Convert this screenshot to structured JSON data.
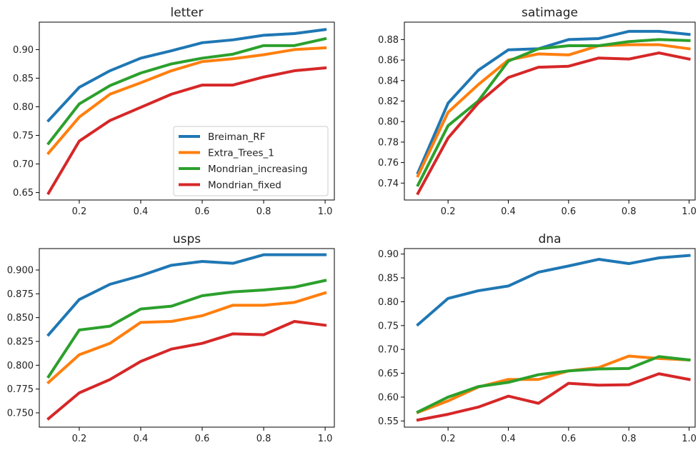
{
  "colors": {
    "Breiman_RF": "#1f77b4",
    "Extra_Trees_1": "#ff7f0e",
    "Mondrian_increasing": "#2ca02c",
    "Mondrian_fixed": "#d62728",
    "axis": "#000000",
    "background": "#ffffff"
  },
  "chart_data": [
    {
      "type": "line",
      "title": "letter",
      "xlabel": "",
      "ylabel": "",
      "x": [
        0.1,
        0.2,
        0.3,
        0.4,
        0.5,
        0.6,
        0.7,
        0.8,
        0.9,
        1.0
      ],
      "xlim": [
        0.07,
        1.03
      ],
      "ylim": [
        0.637,
        0.948
      ],
      "xticks": [
        0.2,
        0.4,
        0.6,
        0.8,
        1.0
      ],
      "xtick_labels": [
        "0.2",
        "0.4",
        "0.6",
        "0.8",
        "1.0"
      ],
      "yticks": [
        0.65,
        0.7,
        0.75,
        0.8,
        0.85,
        0.9
      ],
      "ytick_labels": [
        "0.65",
        "0.70",
        "0.75",
        "0.80",
        "0.85",
        "0.90"
      ],
      "legend": {
        "show": true,
        "placement": "lower-right"
      },
      "series": [
        {
          "name": "Breiman_RF",
          "values": [
            0.776,
            0.834,
            0.863,
            0.885,
            0.898,
            0.912,
            0.917,
            0.925,
            0.928,
            0.935
          ]
        },
        {
          "name": "Extra_Trees_1",
          "values": [
            0.719,
            0.782,
            0.822,
            0.842,
            0.863,
            0.879,
            0.884,
            0.891,
            0.9,
            0.903
          ]
        },
        {
          "name": "Mondrian_increasing",
          "values": [
            0.736,
            0.805,
            0.837,
            0.859,
            0.875,
            0.885,
            0.892,
            0.907,
            0.907,
            0.919
          ]
        },
        {
          "name": "Mondrian_fixed",
          "values": [
            0.649,
            0.74,
            0.776,
            0.799,
            0.822,
            0.838,
            0.838,
            0.852,
            0.863,
            0.868
          ]
        }
      ]
    },
    {
      "type": "line",
      "title": "satimage",
      "xlabel": "",
      "ylabel": "",
      "x": [
        0.1,
        0.2,
        0.3,
        0.4,
        0.5,
        0.6,
        0.7,
        0.8,
        0.9,
        1.0
      ],
      "xlim": [
        0.055,
        1.02
      ],
      "ylim": [
        0.7235,
        0.897
      ],
      "xticks": [
        0.2,
        0.4,
        0.6,
        0.8,
        1.0
      ],
      "xtick_labels": [
        "0.2",
        "0.4",
        "0.6",
        "0.8",
        "1.0"
      ],
      "yticks": [
        0.74,
        0.76,
        0.78,
        0.8,
        0.82,
        0.84,
        0.86,
        0.88
      ],
      "ytick_labels": [
        "0.74",
        "0.76",
        "0.78",
        "0.80",
        "0.82",
        "0.84",
        "0.86",
        "0.88"
      ],
      "legend": {
        "show": false
      },
      "series": [
        {
          "name": "Breiman_RF",
          "values": [
            0.75,
            0.818,
            0.85,
            0.87,
            0.871,
            0.88,
            0.881,
            0.888,
            0.888,
            0.885
          ]
        },
        {
          "name": "Extra_Trees_1",
          "values": [
            0.747,
            0.809,
            0.836,
            0.86,
            0.866,
            0.865,
            0.874,
            0.875,
            0.875,
            0.871
          ]
        },
        {
          "name": "Mondrian_increasing",
          "values": [
            0.738,
            0.796,
            0.82,
            0.859,
            0.871,
            0.874,
            0.874,
            0.878,
            0.88,
            0.879
          ]
        },
        {
          "name": "Mondrian_fixed",
          "values": [
            0.73,
            0.784,
            0.818,
            0.843,
            0.853,
            0.854,
            0.862,
            0.861,
            0.867,
            0.861
          ]
        }
      ]
    },
    {
      "type": "line",
      "title": "usps",
      "xlabel": "",
      "ylabel": "",
      "x": [
        0.1,
        0.2,
        0.3,
        0.4,
        0.5,
        0.6,
        0.7,
        0.8,
        0.9,
        1.0
      ],
      "xlim": [
        0.07,
        1.03
      ],
      "ylim": [
        0.735,
        0.9225
      ],
      "xticks": [
        0.2,
        0.4,
        0.6,
        0.8,
        1.0
      ],
      "xtick_labels": [
        "0.2",
        "0.4",
        "0.6",
        "0.8",
        "1.0"
      ],
      "yticks": [
        0.75,
        0.775,
        0.8,
        0.825,
        0.85,
        0.875,
        0.9
      ],
      "ytick_labels": [
        "0.750",
        "0.775",
        "0.800",
        "0.825",
        "0.850",
        "0.875",
        "0.900"
      ],
      "legend": {
        "show": false
      },
      "series": [
        {
          "name": "Breiman_RF",
          "values": [
            0.832,
            0.869,
            0.885,
            0.894,
            0.905,
            0.909,
            0.907,
            0.916,
            0.916,
            0.916
          ]
        },
        {
          "name": "Extra_Trees_1",
          "values": [
            0.782,
            0.811,
            0.823,
            0.845,
            0.846,
            0.852,
            0.863,
            0.863,
            0.866,
            0.876
          ]
        },
        {
          "name": "Mondrian_increasing",
          "values": [
            0.788,
            0.837,
            0.841,
            0.859,
            0.862,
            0.873,
            0.877,
            0.879,
            0.882,
            0.889
          ]
        },
        {
          "name": "Mondrian_fixed",
          "values": [
            0.744,
            0.771,
            0.785,
            0.804,
            0.817,
            0.823,
            0.833,
            0.832,
            0.846,
            0.842
          ]
        }
      ]
    },
    {
      "type": "line",
      "title": "dna",
      "xlabel": "",
      "ylabel": "",
      "x": [
        0.1,
        0.2,
        0.3,
        0.4,
        0.5,
        0.6,
        0.7,
        0.8,
        0.9,
        1.0
      ],
      "xlim": [
        0.055,
        1.02
      ],
      "ylim": [
        0.537,
        0.9115
      ],
      "xticks": [
        0.2,
        0.4,
        0.6,
        0.8,
        1.0
      ],
      "xtick_labels": [
        "0.2",
        "0.4",
        "0.6",
        "0.8",
        "1.0"
      ],
      "yticks": [
        0.55,
        0.6,
        0.65,
        0.7,
        0.75,
        0.8,
        0.85,
        0.9
      ],
      "ytick_labels": [
        "0.55",
        "0.60",
        "0.65",
        "0.70",
        "0.75",
        "0.80",
        "0.85",
        "0.90"
      ],
      "legend": {
        "show": false
      },
      "series": [
        {
          "name": "Breiman_RF",
          "values": [
            0.752,
            0.807,
            0.823,
            0.833,
            0.862,
            0.875,
            0.889,
            0.88,
            0.892,
            0.897
          ]
        },
        {
          "name": "Extra_Trees_1",
          "values": [
            0.568,
            0.592,
            0.621,
            0.637,
            0.637,
            0.655,
            0.662,
            0.686,
            0.681,
            0.678
          ]
        },
        {
          "name": "Mondrian_increasing",
          "values": [
            0.569,
            0.6,
            0.622,
            0.631,
            0.647,
            0.655,
            0.659,
            0.66,
            0.685,
            0.678
          ]
        },
        {
          "name": "Mondrian_fixed",
          "values": [
            0.552,
            0.564,
            0.579,
            0.602,
            0.587,
            0.629,
            0.625,
            0.626,
            0.649,
            0.637
          ]
        }
      ]
    }
  ]
}
